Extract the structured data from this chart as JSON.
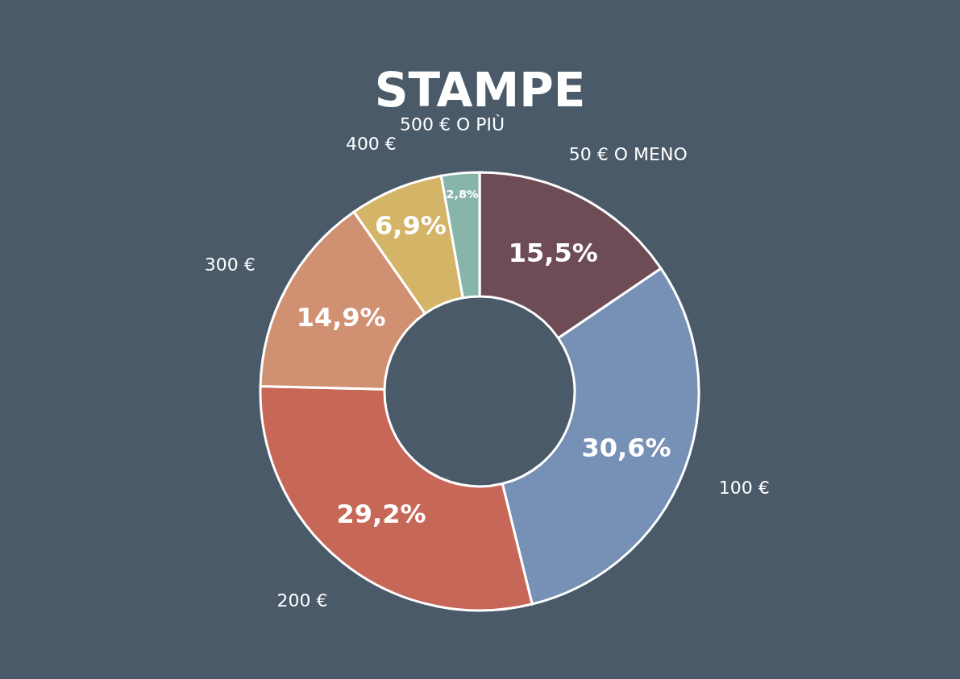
{
  "chart_data": {
    "type": "donut",
    "title": "STAMPE",
    "categories": [
      "50 € O MENO",
      "100 €",
      "200 €",
      "300 €",
      "400 €",
      "500 € O PIÙ"
    ],
    "values": [
      15.5,
      30.6,
      29.2,
      14.9,
      6.9,
      2.8
    ],
    "colors": [
      "#6e4c55",
      "#7790b5",
      "#c76757",
      "#d09072",
      "#d4b467",
      "#88b5aa"
    ],
    "value_labels": [
      "15,5%",
      "30,6%",
      "29,2%",
      "14,9%",
      "6,9%",
      "2,8%"
    ]
  }
}
